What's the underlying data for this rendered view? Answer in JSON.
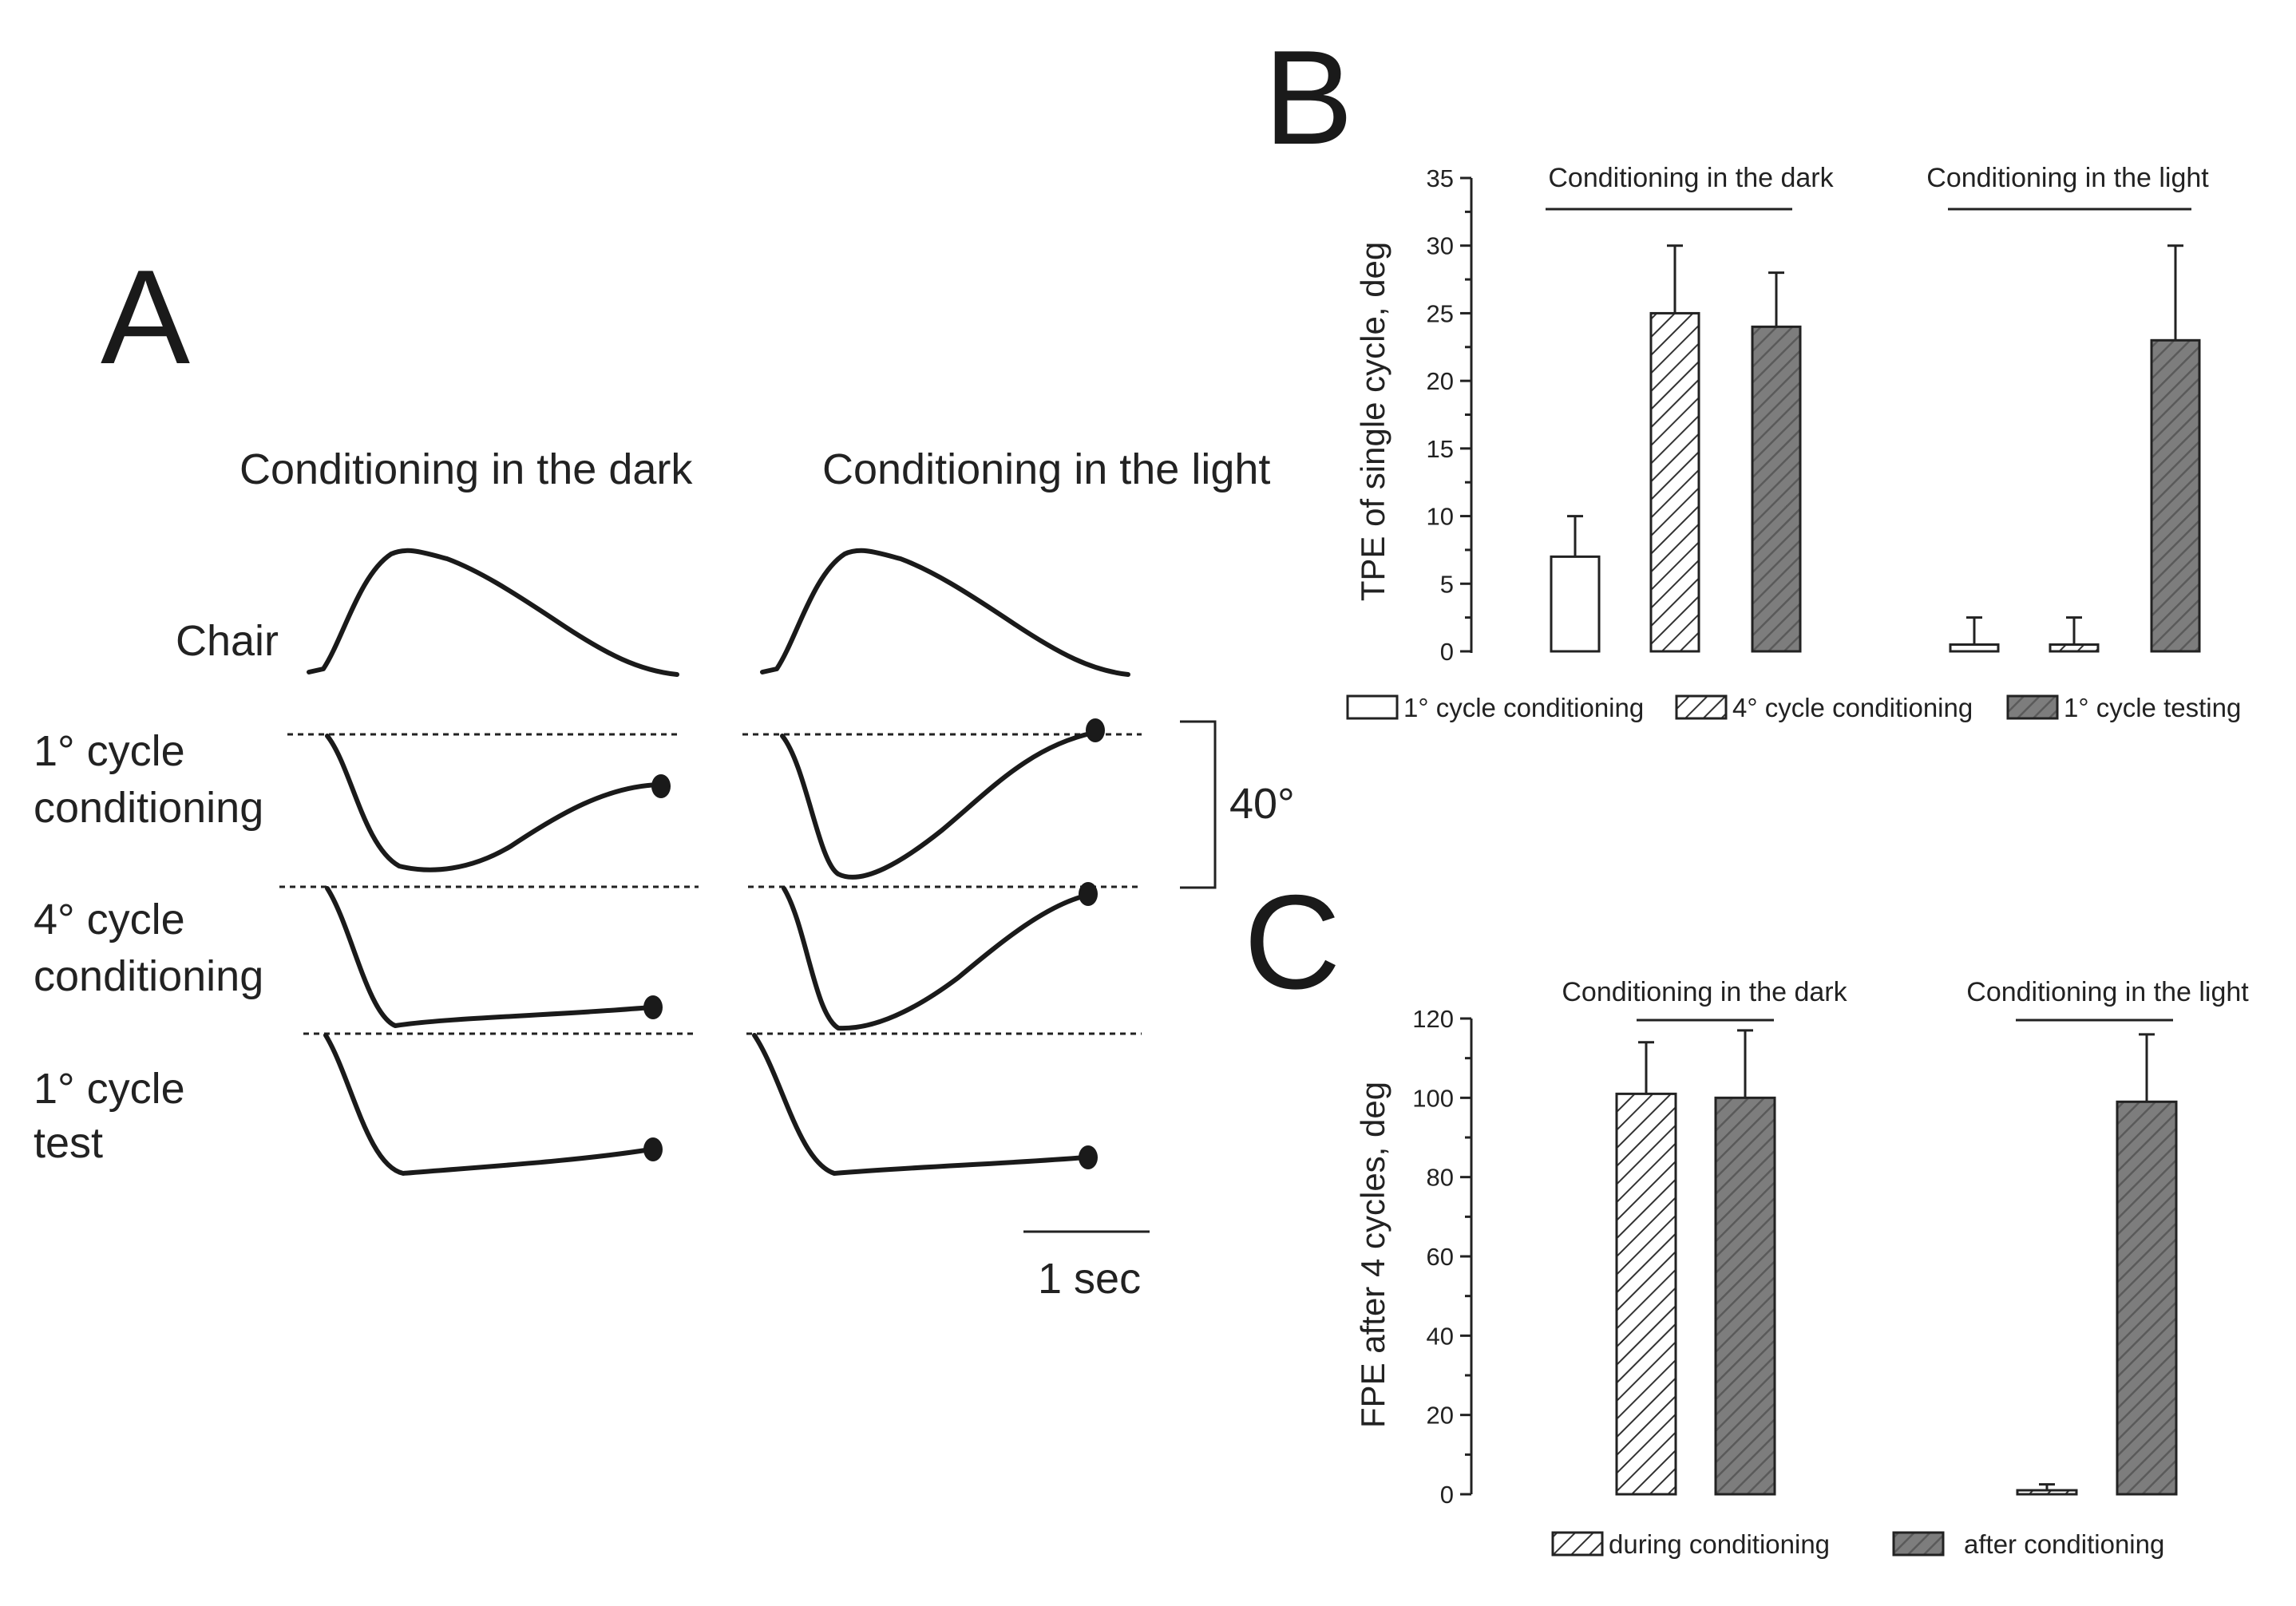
{
  "panels": {
    "A": {
      "letter": "A",
      "columns": [
        "Conditioning in the dark",
        "Conditioning in the light"
      ],
      "rows": [
        {
          "id": "chair",
          "lines": [
            "Chair"
          ]
        },
        {
          "id": "c1",
          "lines": [
            "1° cycle",
            "conditioning"
          ]
        },
        {
          "id": "c4",
          "lines": [
            "4° cycle",
            "conditioning"
          ]
        },
        {
          "id": "test",
          "lines": [
            "1° cycle",
            "test"
          ]
        }
      ],
      "amplitude_scale": "40°",
      "time_scale": "1 sec"
    },
    "B": {
      "letter": "B"
    },
    "C": {
      "letter": "C"
    }
  },
  "chart_data": [
    {
      "id": "B",
      "type": "bar",
      "title": "",
      "ylabel": "TPE of single cycle, deg",
      "ylim": [
        0,
        35
      ],
      "yticks": [
        0,
        5,
        10,
        15,
        20,
        25,
        30,
        35
      ],
      "groups": [
        "Conditioning in the dark",
        "Conditioning in the light"
      ],
      "series": [
        {
          "name": "1° cycle conditioning",
          "fill": "white",
          "values": [
            7,
            0.5
          ],
          "errors": [
            3,
            2
          ]
        },
        {
          "name": "4° cycle conditioning",
          "fill": "hatch",
          "values": [
            25,
            0.5
          ],
          "errors": [
            5,
            2
          ]
        },
        {
          "name": "1° cycle testing",
          "fill": "dark",
          "values": [
            24,
            23
          ],
          "errors": [
            4,
            7
          ]
        }
      ]
    },
    {
      "id": "C",
      "type": "bar",
      "title": "",
      "ylabel": "FPE after 4 cycles, deg",
      "ylim": [
        0,
        120
      ],
      "yticks": [
        0,
        20,
        40,
        60,
        80,
        100,
        120
      ],
      "groups": [
        "Conditioning in the dark",
        "Conditioning in the light"
      ],
      "series": [
        {
          "name": "during conditioning",
          "fill": "hatch",
          "values": [
            101,
            1
          ],
          "errors": [
            13,
            1.5
          ]
        },
        {
          "name": "after conditioning",
          "fill": "dark",
          "values": [
            100,
            99
          ],
          "errors": [
            17,
            17
          ]
        }
      ]
    }
  ],
  "colors": {
    "ink": "#1a1a1a",
    "dark_bar": "#808080",
    "hatch_bg": "#ffffff"
  }
}
